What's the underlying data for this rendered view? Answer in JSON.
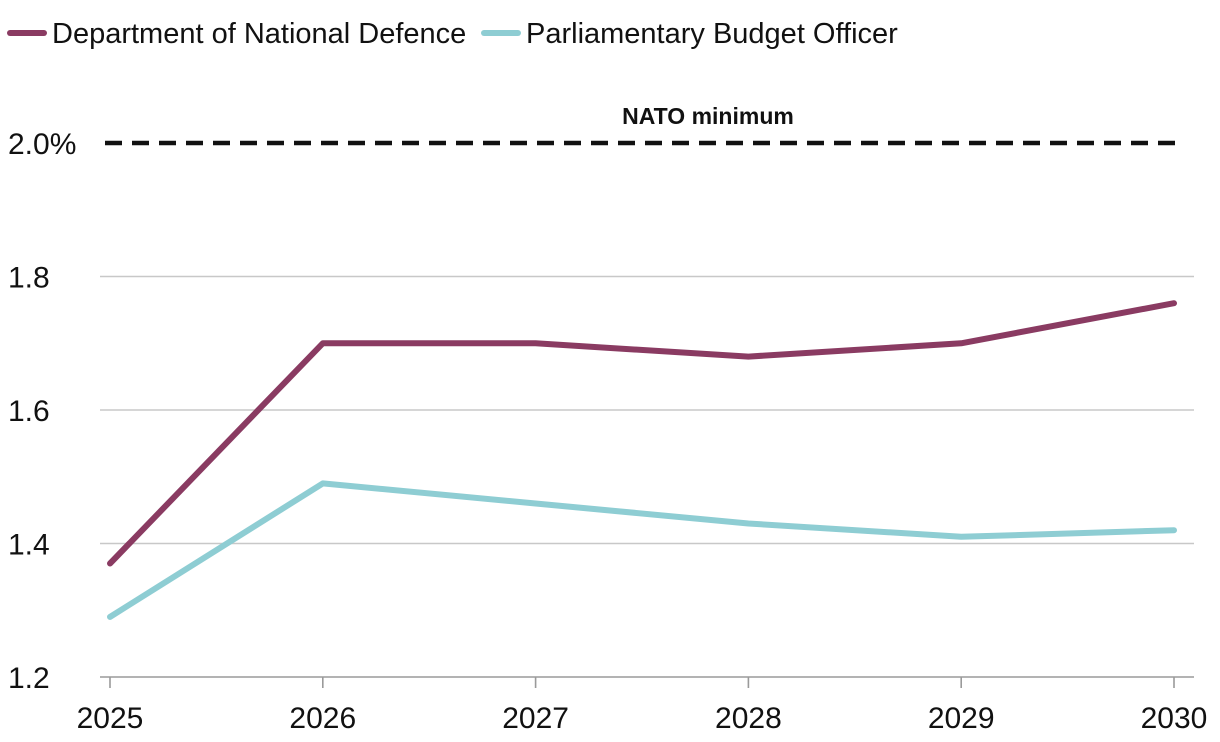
{
  "chart_data": {
    "type": "line",
    "title": "",
    "xlabel": "",
    "ylabel": "",
    "x": [
      2025,
      2026,
      2027,
      2028,
      2029,
      2030
    ],
    "categories": [
      "2025",
      "2026",
      "2027",
      "2028",
      "2029",
      "2030"
    ],
    "ylim": [
      1.2,
      2.0
    ],
    "yticks": [
      {
        "value": 2.0,
        "label": "2.0%"
      },
      {
        "value": 1.8,
        "label": "1.8"
      },
      {
        "value": 1.6,
        "label": "1.6"
      },
      {
        "value": 1.4,
        "label": "1.4"
      },
      {
        "value": 1.2,
        "label": "1.2"
      }
    ],
    "grid": true,
    "legend_position": "top-left",
    "series": [
      {
        "name": "Department of National Defence",
        "color": "#8a3b62",
        "values": [
          1.37,
          1.7,
          1.7,
          1.68,
          1.7,
          1.76
        ]
      },
      {
        "name": "Parliamentary Budget Officer",
        "color": "#8ecdd3",
        "values": [
          1.29,
          1.49,
          1.46,
          1.43,
          1.41,
          1.42
        ]
      }
    ],
    "reference_line": {
      "label": "NATO minimum",
      "value": 2.0,
      "color": "#111111",
      "style": "dashed"
    }
  }
}
